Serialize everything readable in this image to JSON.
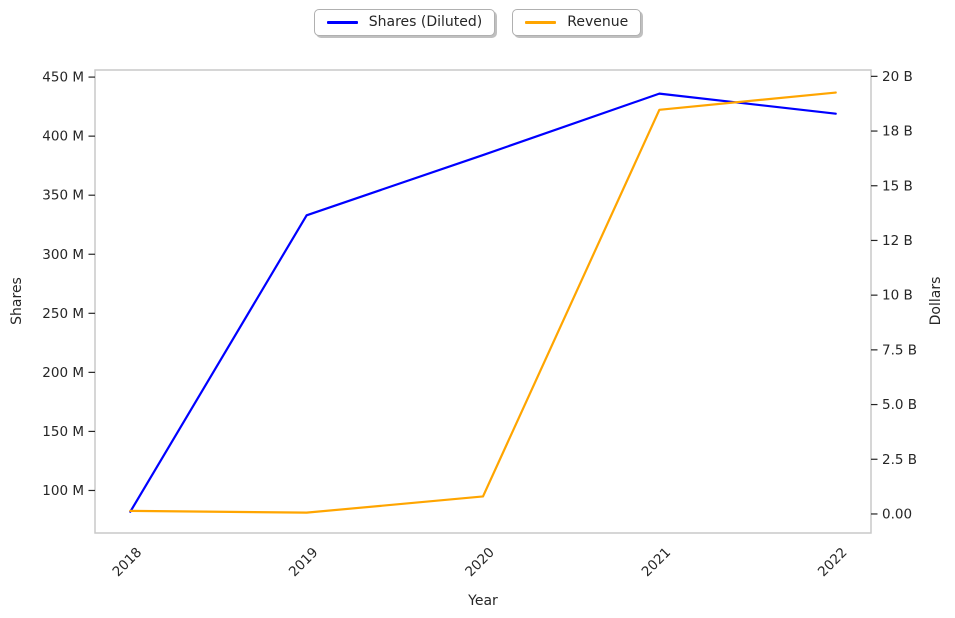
{
  "chart_data": {
    "type": "line",
    "title": "",
    "xlabel": "Year",
    "grid": false,
    "categories": [
      "2018",
      "2019",
      "2020",
      "2021",
      "2022"
    ],
    "series": [
      {
        "name": "Shares (Diluted)",
        "axis": "left",
        "color": "#0000ff",
        "unit": "millions of shares",
        "values": [
          82,
          333,
          384,
          436,
          419
        ]
      },
      {
        "name": "Revenue",
        "axis": "right",
        "color": "#ffa500",
        "unit": "billions of dollars",
        "values": [
          0.14,
          0.06,
          0.8,
          18.47,
          19.26
        ]
      }
    ],
    "axes": {
      "x": {
        "range": [
          -0.2,
          4.2
        ],
        "tick_positions": [
          0,
          1,
          2,
          3,
          4
        ],
        "tick_labels": [
          "2018",
          "2019",
          "2020",
          "2021",
          "2022"
        ],
        "label_rotation_deg": 45
      },
      "left": {
        "label": "Shares",
        "range": [
          64,
          456
        ],
        "ticks": [
          {
            "v": 100,
            "label": "100 M"
          },
          {
            "v": 150,
            "label": "150 M"
          },
          {
            "v": 200,
            "label": "200 M"
          },
          {
            "v": 250,
            "label": "250 M"
          },
          {
            "v": 300,
            "label": "300 M"
          },
          {
            "v": 350,
            "label": "350 M"
          },
          {
            "v": 400,
            "label": "400 M"
          },
          {
            "v": 450,
            "label": "450 M"
          }
        ]
      },
      "right": {
        "label": "Dollars",
        "range": [
          -0.87,
          20.29
        ],
        "ticks": [
          {
            "v": 0,
            "label": "0.00"
          },
          {
            "v": 2.5,
            "label": "2.5 B"
          },
          {
            "v": 5,
            "label": "5.0 B"
          },
          {
            "v": 7.5,
            "label": "7.5 B"
          },
          {
            "v": 10,
            "label": "10 B"
          },
          {
            "v": 12.5,
            "label": "12 B"
          },
          {
            "v": 15,
            "label": "15 B"
          },
          {
            "v": 17.5,
            "label": "18 B"
          },
          {
            "v": 20,
            "label": "20 B"
          }
        ]
      }
    },
    "legend": {
      "position": "upper center",
      "entries": [
        "Shares (Diluted)",
        "Revenue"
      ]
    },
    "style": {
      "spine_color": "#c9c9c9",
      "tick_color": "#262626",
      "background": "#ffffff"
    }
  }
}
